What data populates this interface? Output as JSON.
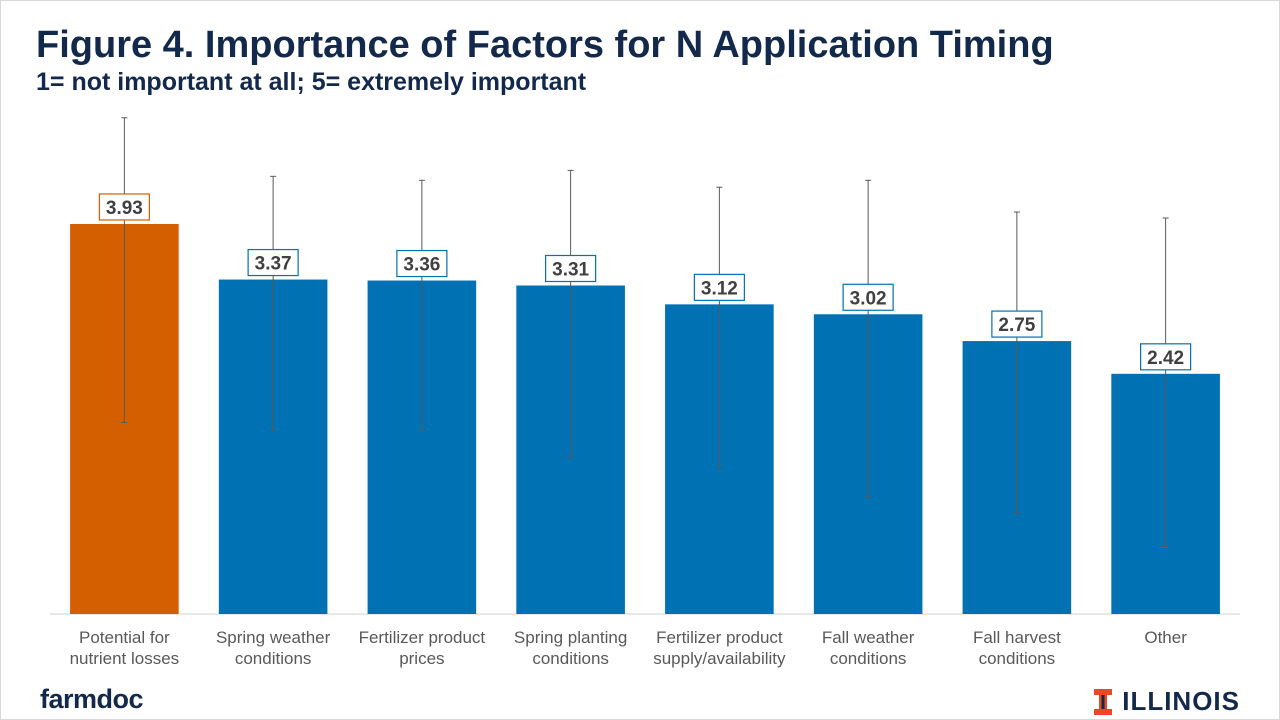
{
  "title": "Figure 4. Importance of Factors for N Application Timing",
  "subtitle": "1= not important at all; 5= extremely important",
  "chart_data": {
    "type": "bar",
    "title": "Figure 4. Importance of Factors for N Application Timing",
    "subtitle": "1= not important at all; 5= extremely important",
    "xlabel": "",
    "ylabel": "",
    "ylim": [
      0,
      5.3
    ],
    "grid": false,
    "legend": "none",
    "categories": [
      [
        "Potential for",
        "nutrient losses"
      ],
      [
        "Spring weather",
        "conditions"
      ],
      [
        "Fertilizer product",
        "prices"
      ],
      [
        "Spring planting",
        "conditions"
      ],
      [
        "Fertilizer product",
        "supply/availability"
      ],
      [
        "Fall weather",
        "conditions"
      ],
      [
        "Fall harvest",
        "conditions"
      ],
      [
        "Other"
      ]
    ],
    "values": [
      3.93,
      3.37,
      3.36,
      3.31,
      3.12,
      3.02,
      2.75,
      2.42
    ],
    "data_labels": [
      "3.93",
      "3.37",
      "3.36",
      "3.31",
      "3.12",
      "3.02",
      "2.75",
      "2.42"
    ],
    "error_bars": [
      [
        1.93,
        5.0
      ],
      [
        1.84,
        4.41
      ],
      [
        1.84,
        4.37
      ],
      [
        1.58,
        4.47
      ],
      [
        1.47,
        4.3
      ],
      [
        1.18,
        4.37
      ],
      [
        1.02,
        4.05
      ],
      [
        0.68,
        3.99
      ]
    ],
    "colors": {
      "highlight": "#d45f00",
      "bars": "#0071b3",
      "error_bar": "#595959",
      "axis": "#d9d9d9"
    },
    "highlight_index": 0
  },
  "logos": {
    "left": "farmdoc",
    "right": "ILLINOIS",
    "right_icon": "block-i-icon"
  }
}
